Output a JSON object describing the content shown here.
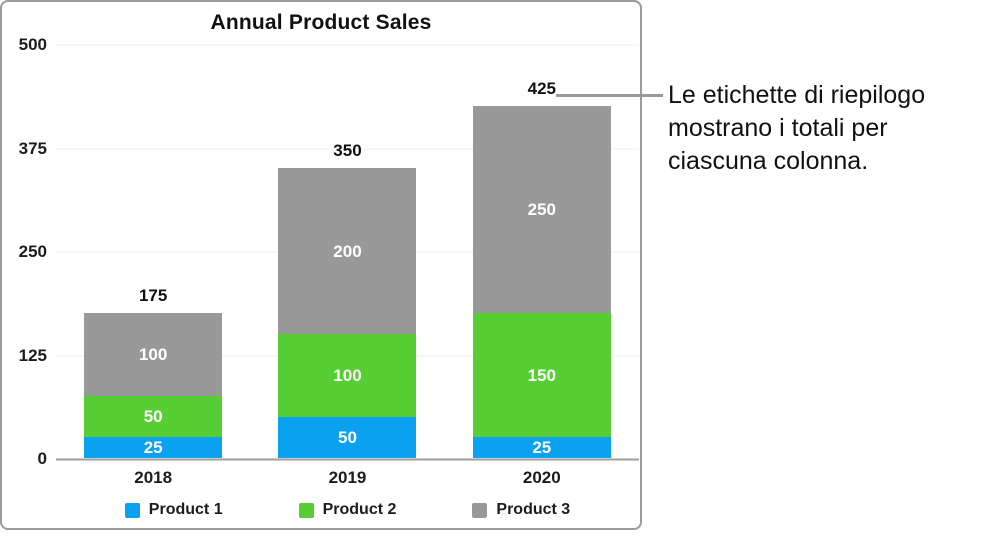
{
  "chart_data": {
    "type": "bar",
    "stacked": true,
    "title": "Annual Product Sales",
    "categories": [
      "2018",
      "2019",
      "2020"
    ],
    "series": [
      {
        "name": "Product 1",
        "color": "#0aa1f1",
        "values": [
          25,
          50,
          25
        ]
      },
      {
        "name": "Product 2",
        "color": "#56ce34",
        "values": [
          50,
          100,
          150
        ]
      },
      {
        "name": "Product 3",
        "color": "#999999",
        "values": [
          100,
          200,
          250
        ]
      }
    ],
    "totals": [
      175,
      350,
      425
    ],
    "y_ticks": [
      0,
      125,
      250,
      375,
      500
    ],
    "ylim": [
      0,
      500
    ],
    "grid": true,
    "legend_position": "bottom",
    "colors": {
      "grid_line": "#efefef",
      "axis_line": "#9e9e9e",
      "panel_border": "#9a9a9e",
      "callout_line": "#98989d"
    }
  },
  "annotation": {
    "text": "Le etichette di riepilogo mostrano i totali per ciascuna colonna."
  }
}
